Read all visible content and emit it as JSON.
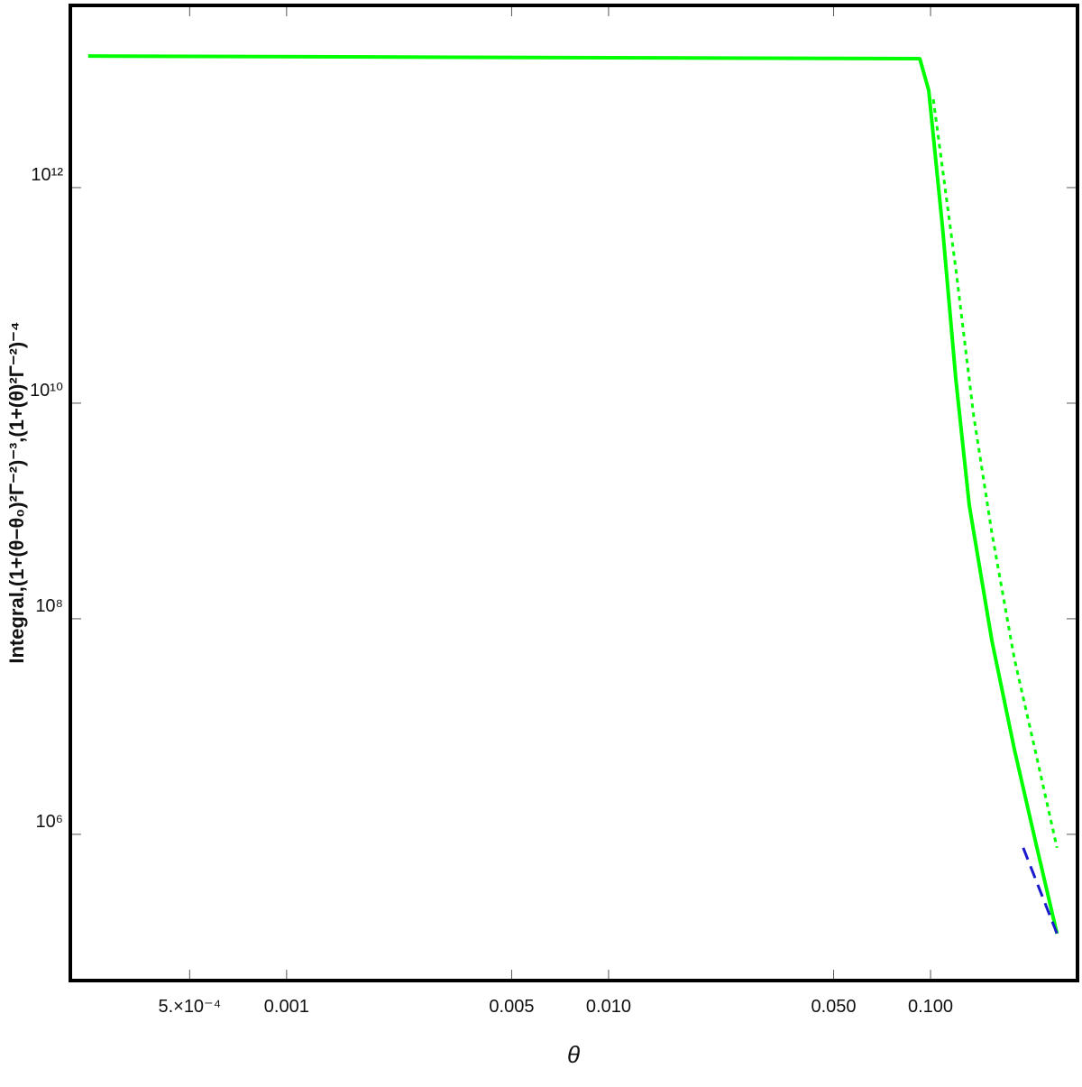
{
  "chart_data": {
    "type": "line",
    "x_label": "θ",
    "y_label": "Integral,(1+(θ−θ₀)²Γ⁻²)⁻³,(1+(θ)²Γ⁻²)⁻⁴",
    "xlog": true,
    "ylog": true,
    "xlim": [
      0.000213,
      0.286
    ],
    "ylim": [
      44000,
      49000000000000
    ],
    "xticks": [
      {
        "value": 0.0005,
        "label": "5.×10⁻⁴"
      },
      0.001,
      0.005,
      {
        "value": 0.01,
        "label": "0.010"
      },
      {
        "value": 0.05,
        "label": "0.050"
      },
      {
        "value": 0.1,
        "label": "0.100"
      }
    ],
    "yticks": [
      {
        "value": 1000000,
        "label": "10⁶"
      },
      {
        "value": 100000000,
        "label": "10⁸"
      },
      {
        "value": 10000000000,
        "label": "10¹⁰"
      },
      {
        "value": 1000000000000,
        "label": "10¹²"
      }
    ],
    "series": [
      {
        "color": "#00ff00",
        "dash": "solid",
        "width": 4,
        "x": [
          0.000242,
          0.0926,
          0.0987,
          0.1088,
          0.1198,
          0.1319,
          0.155,
          0.182,
          0.214,
          0.247
        ],
        "values": [
          16600000000000,
          15700000000000,
          8000000000000,
          445000000000,
          16800000000,
          1130000000,
          63000000,
          6200000,
          750000,
          120000
        ]
      },
      {
        "color": "#00ff00",
        "dash": "dotted",
        "width": 3,
        "x": [
          0.102,
          0.12,
          0.136,
          0.155,
          0.182,
          0.214,
          0.247
        ],
        "values": [
          6600000000000,
          170000000000,
          7800000000,
          630000000,
          43000000,
          5100000,
          750000
        ]
      },
      {
        "color": "#1a1acc",
        "dash": "dashed",
        "width": 3,
        "x": [
          0.194,
          0.247
        ],
        "values": [
          750000,
          120000
        ]
      }
    ]
  }
}
